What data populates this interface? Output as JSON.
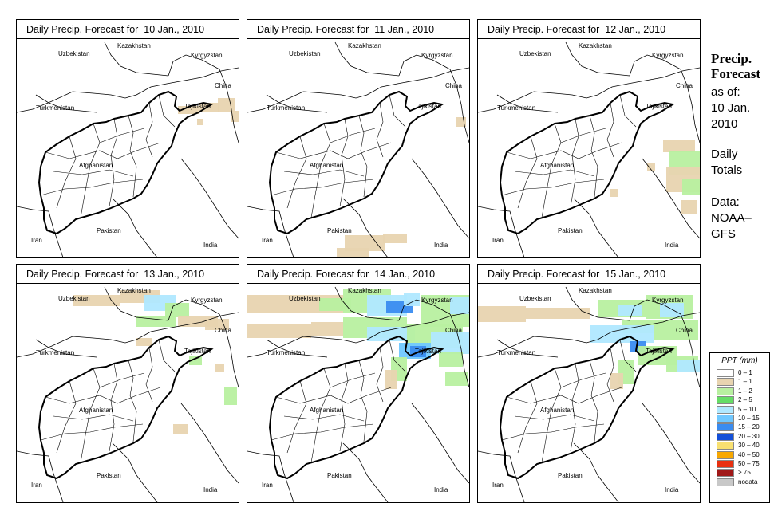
{
  "panels": [
    {
      "title": "Daily Precip. Forecast for  10 Jan., 2010",
      "precip_level": "minimal"
    },
    {
      "title": "Daily Precip. Forecast for  11 Jan., 2010",
      "precip_level": "minimal"
    },
    {
      "title": "Daily Precip. Forecast for  12 Jan., 2010",
      "precip_level": "light"
    },
    {
      "title": "Daily Precip. Forecast for  13 Jan., 2010",
      "precip_level": "light"
    },
    {
      "title": "Daily Precip. Forecast for  14 Jan., 2010",
      "precip_level": "heavy"
    },
    {
      "title": "Daily Precip. Forecast for  15 Jan., 2010",
      "precip_level": "moderate"
    }
  ],
  "map_labels": {
    "uzbekistan": "Uzbekistan",
    "kazakhstan": "Kazakhstan",
    "kyrgyzstan": "Kyrgyzstan",
    "china": "China",
    "turkmenistan": "Turkmenistan",
    "tajikistan": "Tajikistan",
    "afghanistan": "Afghanistan",
    "pakistan": "Pakistan",
    "iran": "Iran",
    "india": "India"
  },
  "sidebar": {
    "title_line1": "Precip.",
    "title_line2": "Forecast",
    "asof": "as of:",
    "date_line1": "10 Jan.",
    "date_line2": "2010",
    "totals_line1": "Daily",
    "totals_line2": "Totals",
    "data_line1": "Data:",
    "data_line2": "NOAA–",
    "data_line3": "GFS"
  },
  "legend": {
    "title": "PPT (mm)",
    "items": [
      {
        "label": "0 – 1",
        "color": "#ffffff"
      },
      {
        "label": "1 – 1",
        "color": "#e8d4b0"
      },
      {
        "label": "1 – 2",
        "color": "#b8f0a0"
      },
      {
        "label": "2 – 5",
        "color": "#66dd66"
      },
      {
        "label": "5 – 10",
        "color": "#b0e8ff"
      },
      {
        "label": "10 – 15",
        "color": "#70c8ff"
      },
      {
        "label": "15 – 20",
        "color": "#3a8cf0"
      },
      {
        "label": "20 – 30",
        "color": "#1450d8"
      },
      {
        "label": "30 – 40",
        "color": "#f8e070"
      },
      {
        "label": "40 – 50",
        "color": "#f8a800"
      },
      {
        "label": "50 – 75",
        "color": "#e83010"
      },
      {
        "label": "> 75",
        "color": "#a01818"
      },
      {
        "label": "nodata",
        "color": "#c8c8c8"
      }
    ]
  }
}
